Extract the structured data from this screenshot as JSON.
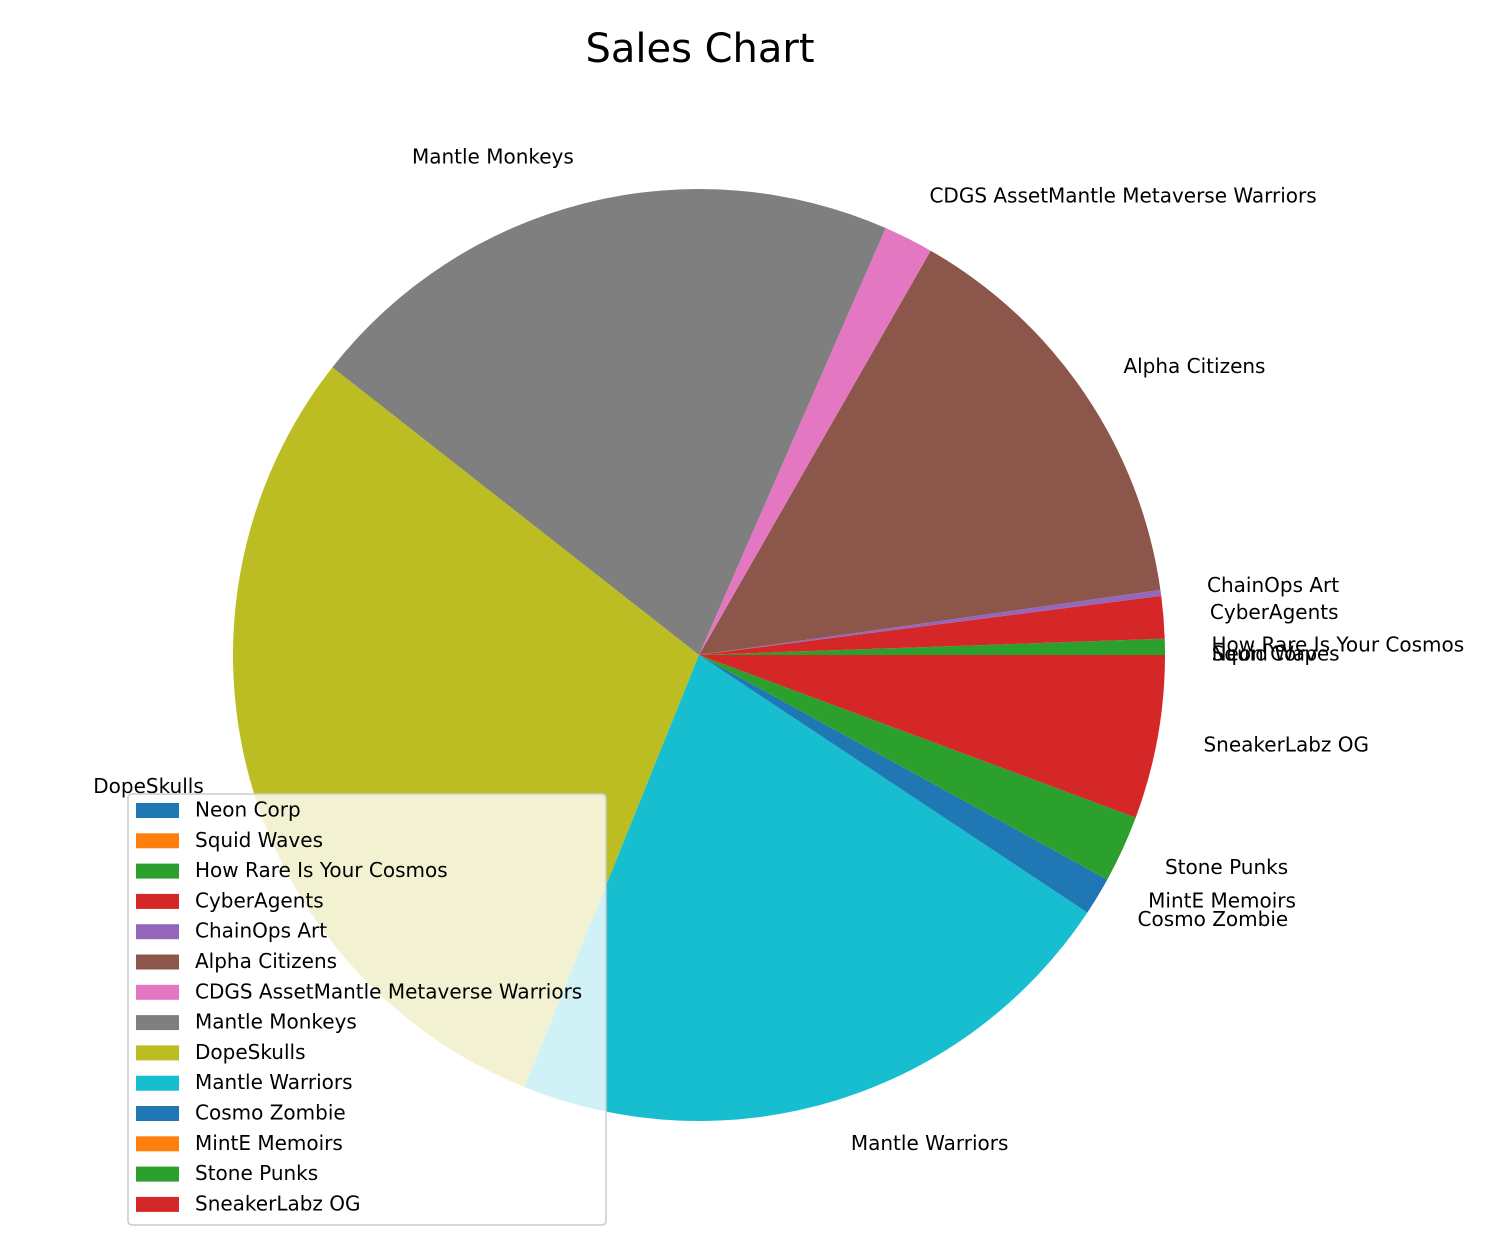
{
  "chart_data": {
    "type": "pie",
    "title": "Sales Chart",
    "start_angle_deg": 0,
    "direction": "counterclockwise",
    "slices": [
      {
        "label": "Neon Corp",
        "value": 0.0,
        "color": "#1f77b4"
      },
      {
        "label": "Squid Waves",
        "value": 0.0,
        "color": "#ff7f0e"
      },
      {
        "label": "How Rare Is Your Cosmos",
        "value": 0.55,
        "color": "#2ca02c"
      },
      {
        "label": "CyberAgents",
        "value": 1.45,
        "color": "#d62728"
      },
      {
        "label": "ChainOps Art",
        "value": 0.2,
        "color": "#9467bd"
      },
      {
        "label": "Alpha Citizens",
        "value": 14.3,
        "color": "#8c564b"
      },
      {
        "label": "CDGS AssetMantle Metaverse Warriors",
        "value": 1.7,
        "color": "#e377c2"
      },
      {
        "label": "Mantle Monkeys",
        "value": 20.7,
        "color": "#7f7f7f"
      },
      {
        "label": "DopeSkulls",
        "value": 29.1,
        "color": "#bcbd22"
      },
      {
        "label": "Mantle Warriors",
        "value": 21.5,
        "color": "#17becf"
      },
      {
        "label": "Cosmo Zombie",
        "value": 1.3,
        "color": "#1f77b4"
      },
      {
        "label": "MintE Memoirs",
        "value": 0.0,
        "color": "#ff7f0e"
      },
      {
        "label": "Stone Punks",
        "value": 2.3,
        "color": "#2ca02c"
      },
      {
        "label": "SneakerLabz OG",
        "value": 5.6,
        "color": "#d62728"
      }
    ],
    "legend_placement": "lower-left"
  }
}
